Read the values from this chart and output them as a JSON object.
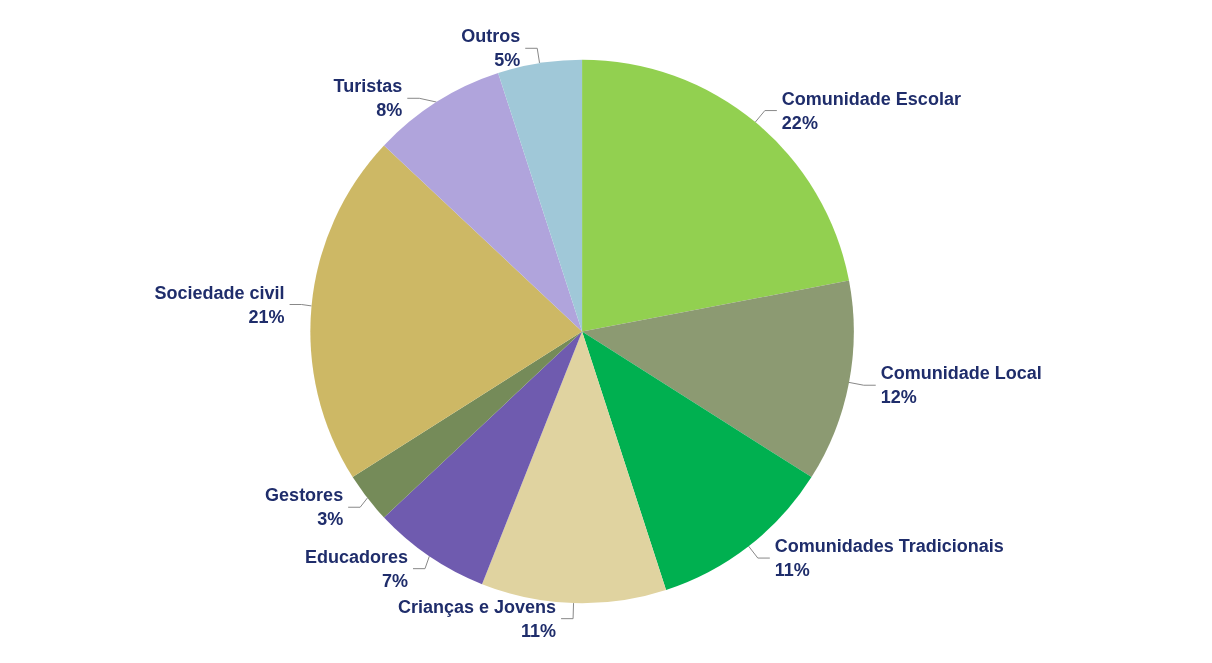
{
  "chart_data": {
    "type": "pie",
    "categories": [
      "Comunidade Escolar",
      "Comunidade Local",
      "Comunidades Tradicionais",
      "Crianças e Jovens",
      "Educadores",
      "Gestores",
      "Sociedade civil",
      "Turistas",
      "Outros"
    ],
    "values": [
      22,
      12,
      11,
      11,
      7,
      3,
      21,
      8,
      5
    ],
    "colors": [
      "#92d050",
      "#8c9a72",
      "#00b050",
      "#e0d3a0",
      "#6f5baf",
      "#758b59",
      "#cdb865",
      "#b0a4dc",
      "#a0c8d8"
    ],
    "value_labels": [
      "22%",
      "12%",
      "11%",
      "11%",
      "7%",
      "3%",
      "21%",
      "8%",
      "5%"
    ],
    "legend": false
  }
}
